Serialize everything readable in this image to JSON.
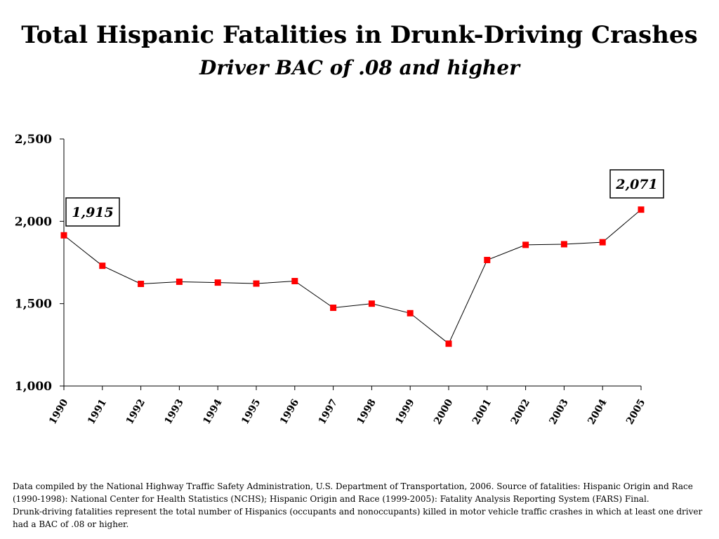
{
  "chart_data": {
    "type": "line",
    "title": "Total Hispanic Fatalities in Drunk-Driving Crashes",
    "subtitle": "Driver BAC of .08 and higher",
    "xlabel": "",
    "ylabel": "",
    "categories": [
      "1990",
      "1991",
      "1992",
      "1993",
      "1994",
      "1995",
      "1996",
      "1997",
      "1998",
      "1999",
      "2000",
      "2001",
      "2002",
      "2003",
      "2004",
      "2005"
    ],
    "series": [
      {
        "values": [
          1915,
          1730,
          1620,
          1633,
          1628,
          1622,
          1637,
          1475,
          1500,
          1442,
          1257,
          1765,
          1857,
          1861,
          1873,
          2071
        ]
      }
    ],
    "ylim": [
      1000,
      2500
    ],
    "yticks": [
      1000,
      1500,
      2000,
      2500
    ],
    "ytick_labels": [
      "1,000",
      "1,500",
      "2,000",
      "2,500"
    ],
    "annotations": [
      {
        "index": 0,
        "text": "1,915"
      },
      {
        "index": 15,
        "text": "2,071"
      }
    ],
    "grid": false,
    "legend": "none",
    "colors": {
      "line": "#000000",
      "marker": "#ff0000"
    }
  },
  "footnote": {
    "line1": "Data compiled by the National Highway Traffic Safety Administration, U.S. Department of Transportation, 2006.  Source of fatalities: Hispanic Origin and Race (1990-1998): National Center for Health Statistics (NCHS); Hispanic Origin and Race (1999-2005): Fatality Analysis Reporting System (FARS) Final.",
    "line2": "Drunk-driving fatalities represent the total number of Hispanics (occupants and nonoccupants) killed in motor vehicle traffic crashes in which at least one driver had a BAC of .08 or higher."
  }
}
